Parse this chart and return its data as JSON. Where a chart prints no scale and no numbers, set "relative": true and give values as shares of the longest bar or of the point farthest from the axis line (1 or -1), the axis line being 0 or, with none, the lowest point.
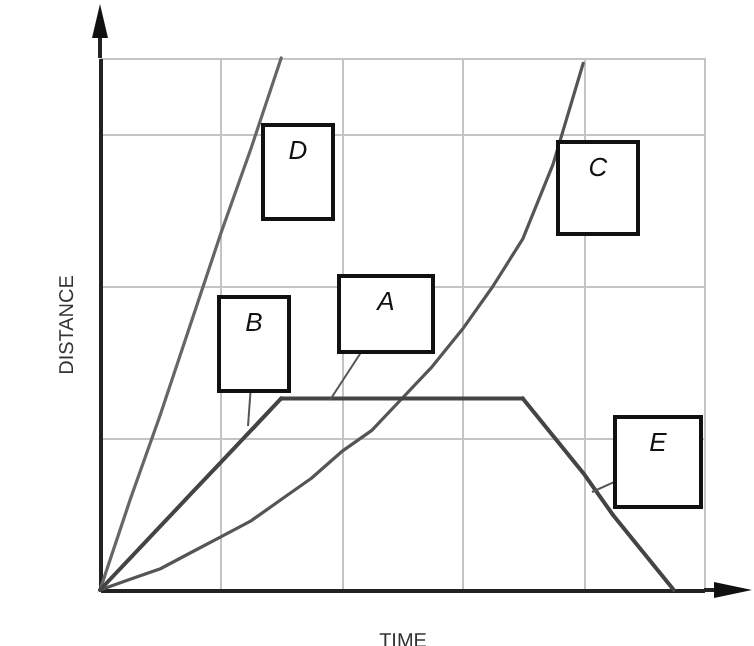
{
  "chart_data": {
    "type": "line",
    "relative": true,
    "xlabel": "TIME",
    "ylabel": "DISTANCE",
    "categories": [
      null,
      null,
      null,
      null,
      null,
      null,
      null,
      null,
      null,
      null,
      null,
      null,
      null,
      null,
      null,
      null,
      null,
      null,
      null,
      null,
      null
    ],
    "grid": true,
    "legend": false,
    "marker": "none",
    "line_style": "solid",
    "series": [
      {
        "color": "#666666",
        "values": [
          0,
          0.17,
          0.33,
          0.5,
          0.67,
          0.83,
          1,
          null,
          null,
          null,
          null,
          null,
          null,
          null,
          null,
          null,
          null,
          null,
          null,
          null,
          null
        ]
      },
      {
        "color": "#555555",
        "values": [
          0,
          0.02,
          0.04,
          0.07,
          0.1,
          0.13,
          0.17,
          0.21,
          0.26,
          0.3,
          0.36,
          0.42,
          0.49,
          0.57,
          0.66,
          0.8,
          0.99,
          null,
          null,
          null,
          null
        ]
      },
      {
        "color": "#444444",
        "values": [
          0,
          0.06,
          0.12,
          0.18,
          0.24,
          0.3,
          0.36,
          null,
          null,
          null,
          null,
          null,
          null,
          null,
          null,
          null,
          null,
          null,
          null,
          null,
          null
        ]
      },
      {
        "color": "#444444",
        "values": [
          null,
          null,
          null,
          null,
          null,
          null,
          0.36,
          0.36,
          0.36,
          0.36,
          0.36,
          0.36,
          0.36,
          0.36,
          0.36,
          null,
          null,
          null,
          null,
          null,
          null
        ]
      },
      {
        "color": "#444444",
        "values": [
          null,
          null,
          null,
          null,
          null,
          null,
          null,
          null,
          null,
          null,
          null,
          null,
          null,
          null,
          0.36,
          0.29,
          0.22,
          0.14,
          0.07,
          0,
          null
        ]
      }
    ],
    "annotations": [
      "D",
      "C",
      "B",
      "A",
      "E"
    ]
  }
}
